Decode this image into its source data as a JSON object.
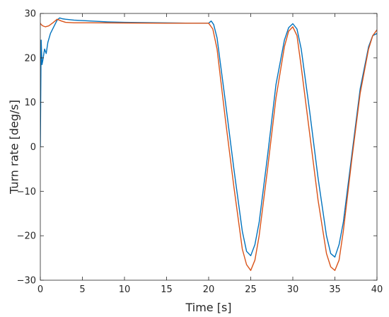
{
  "chart_data": {
    "type": "line",
    "title": "",
    "xlabel": "Time [s]",
    "ylabel": "Turn rate [deg/s]",
    "xlim": [
      0,
      40
    ],
    "ylim": [
      -30,
      30
    ],
    "xticks": [
      0,
      5,
      10,
      15,
      20,
      25,
      30,
      35,
      40
    ],
    "yticks": [
      -30,
      -20,
      -10,
      0,
      10,
      20,
      30
    ],
    "grid": false,
    "legend": "none",
    "series": [
      {
        "color": "#0072BD",
        "x": [
          0,
          0.1,
          0.2,
          0.3,
          0.5,
          0.7,
          0.9,
          1.2,
          1.6,
          2.0,
          2.3,
          2.6,
          3.0,
          4.0,
          6.0,
          8.0,
          10.0,
          14.0,
          18.0,
          20.0,
          20.3,
          20.6,
          21.0,
          22.0,
          23.0,
          24.0,
          24.5,
          25.0,
          25.5,
          26.0,
          27.0,
          28.0,
          29.0,
          29.5,
          30.0,
          30.5,
          31.0,
          32.0,
          33.0,
          34.0,
          34.5,
          35.0,
          35.5,
          36.0,
          37.0,
          38.0,
          39.0,
          39.5,
          40.0
        ],
        "y": [
          0,
          24.0,
          18.5,
          19.5,
          22.0,
          21.0,
          23.5,
          25.5,
          27.0,
          28.5,
          29.0,
          28.8,
          28.7,
          28.5,
          28.3,
          28.1,
          28.0,
          27.9,
          27.8,
          27.8,
          28.3,
          27.5,
          24.5,
          10.0,
          -5.0,
          -19.0,
          -23.5,
          -24.5,
          -22.0,
          -17.0,
          -2.0,
          14.0,
          24.0,
          26.8,
          27.7,
          26.5,
          22.0,
          8.0,
          -7.0,
          -20.0,
          -24.0,
          -24.8,
          -22.0,
          -17.0,
          -2.0,
          13.0,
          22.5,
          25.0,
          25.5
        ]
      },
      {
        "color": "#D95319",
        "x": [
          0,
          0.1,
          0.3,
          0.6,
          1.0,
          1.5,
          2.0,
          2.5,
          3.0,
          4.0,
          6.0,
          10.0,
          15.0,
          20.0,
          20.5,
          21.0,
          22.0,
          23.0,
          24.0,
          24.5,
          25.0,
          25.5,
          26.0,
          27.0,
          28.0,
          29.0,
          29.5,
          30.0,
          30.5,
          31.0,
          32.0,
          33.0,
          34.0,
          34.5,
          35.0,
          35.5,
          36.0,
          37.0,
          38.0,
          39.0,
          39.5,
          40.0
        ],
        "y": [
          27.8,
          27.5,
          27.2,
          27.0,
          27.2,
          27.9,
          28.7,
          28.3,
          28.0,
          27.9,
          27.9,
          27.85,
          27.8,
          27.8,
          26.5,
          22.0,
          6.0,
          -9.0,
          -23.0,
          -26.5,
          -27.8,
          -25.5,
          -20.0,
          -5.0,
          11.0,
          22.5,
          26.0,
          27.0,
          25.0,
          18.0,
          3.0,
          -12.0,
          -24.0,
          -27.0,
          -27.8,
          -25.5,
          -19.0,
          -3.0,
          12.0,
          22.0,
          25.0,
          26.3
        ]
      }
    ]
  }
}
